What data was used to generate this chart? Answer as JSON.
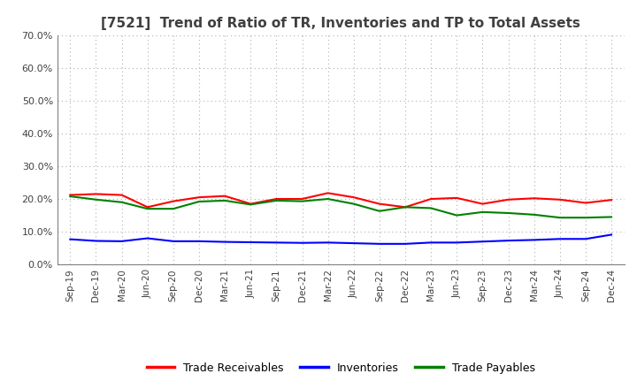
{
  "title": "[7521]  Trend of Ratio of TR, Inventories and TP to Total Assets",
  "x_labels": [
    "Sep-19",
    "Dec-19",
    "Mar-20",
    "Jun-20",
    "Sep-20",
    "Dec-20",
    "Mar-21",
    "Jun-21",
    "Sep-21",
    "Dec-21",
    "Mar-22",
    "Jun-22",
    "Sep-22",
    "Dec-22",
    "Mar-23",
    "Jun-23",
    "Sep-23",
    "Dec-23",
    "Mar-24",
    "Jun-24",
    "Sep-24",
    "Dec-24"
  ],
  "trade_receivables": [
    0.212,
    0.215,
    0.212,
    0.175,
    0.193,
    0.205,
    0.209,
    0.185,
    0.2,
    0.2,
    0.218,
    0.205,
    0.185,
    0.175,
    0.2,
    0.203,
    0.185,
    0.198,
    0.202,
    0.198,
    0.188,
    0.197
  ],
  "inventories": [
    0.077,
    0.072,
    0.071,
    0.08,
    0.071,
    0.071,
    0.069,
    0.068,
    0.067,
    0.066,
    0.067,
    0.065,
    0.063,
    0.063,
    0.067,
    0.067,
    0.07,
    0.073,
    0.075,
    0.078,
    0.078,
    0.091
  ],
  "trade_payables": [
    0.208,
    0.198,
    0.19,
    0.17,
    0.17,
    0.192,
    0.195,
    0.183,
    0.195,
    0.193,
    0.2,
    0.185,
    0.163,
    0.175,
    0.172,
    0.15,
    0.16,
    0.157,
    0.152,
    0.143,
    0.143,
    0.145
  ],
  "ylim": [
    0.0,
    0.7
  ],
  "yticks": [
    0.0,
    0.1,
    0.2,
    0.3,
    0.4,
    0.5,
    0.6,
    0.7
  ],
  "line_colors": {
    "trade_receivables": "#ff0000",
    "inventories": "#0000ff",
    "trade_payables": "#008000"
  },
  "legend_labels": [
    "Trade Receivables",
    "Inventories",
    "Trade Payables"
  ],
  "background_color": "#ffffff",
  "grid_color": "#b0b0b0",
  "title_color": "#404040"
}
